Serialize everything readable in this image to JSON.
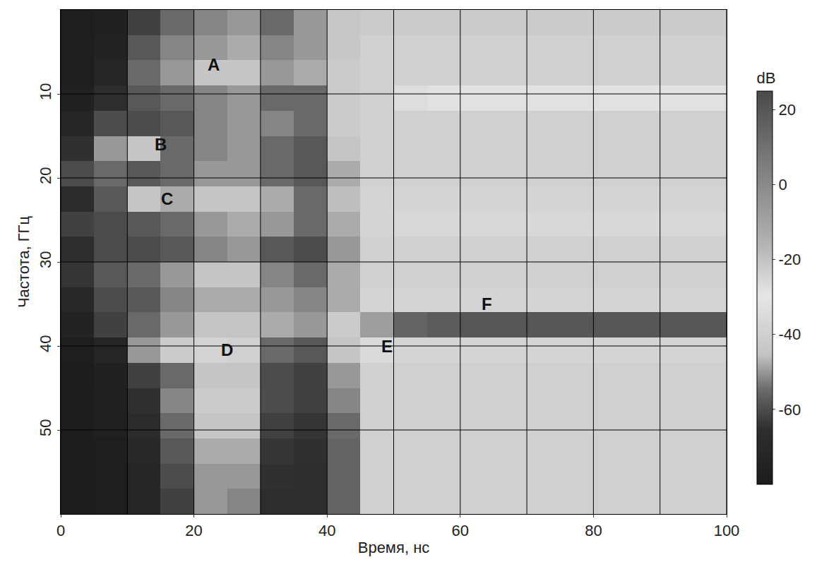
{
  "chart_data": {
    "type": "heatmap",
    "x_label": "Время, нс",
    "y_label": "Частота, ГГц",
    "xlim": [
      0,
      100
    ],
    "ylim": [
      60,
      0
    ],
    "xticks": [
      0,
      20,
      40,
      60,
      80,
      100
    ],
    "yticks": [
      10,
      20,
      30,
      40,
      50
    ],
    "grid": true,
    "x": [
      2.5,
      7.5,
      12.5,
      17.5,
      22.5,
      27.5,
      32.5,
      37.5,
      42.5,
      47.5,
      52.5,
      57.5,
      62.5,
      67.5,
      72.5,
      77.5,
      82.5,
      87.5,
      92.5,
      97.5
    ],
    "y": [
      1.5,
      4.5,
      7.5,
      10.5,
      13.5,
      16.5,
      19.5,
      22.5,
      25.5,
      28.5,
      31.5,
      34.5,
      37.5,
      40.5,
      43.5,
      46.5,
      49.5,
      52.5,
      55.5,
      58.5
    ],
    "cells": [
      [
        -78,
        -76,
        -62,
        -55,
        -52,
        -50,
        -55,
        -50,
        -44,
        -42,
        -42,
        -42,
        -42,
        -42,
        -42,
        -42,
        -42,
        -42,
        -42,
        -42
      ],
      [
        -78,
        -75,
        -58,
        -52,
        -50,
        -48,
        -52,
        -50,
        -44,
        -40,
        -40,
        -40,
        -40,
        -40,
        -40,
        -40,
        -40,
        -40,
        -40,
        -40
      ],
      [
        -78,
        -72,
        -55,
        -50,
        -45,
        -45,
        -50,
        -48,
        -42,
        -40,
        -40,
        -40,
        -40,
        -40,
        -40,
        -40,
        -40,
        -40,
        -40,
        -40
      ],
      [
        -76,
        -66,
        -58,
        -55,
        -52,
        -50,
        -55,
        -55,
        -42,
        -40,
        -34,
        -32,
        -32,
        -32,
        -32,
        -32,
        -32,
        -32,
        -32,
        -32
      ],
      [
        -72,
        -60,
        -60,
        -58,
        -52,
        -50,
        -52,
        -55,
        -42,
        -40,
        -40,
        -40,
        -40,
        -40,
        -40,
        -40,
        -40,
        -40,
        -40,
        -40
      ],
      [
        -65,
        -50,
        -45,
        -55,
        -52,
        -50,
        -55,
        -58,
        -45,
        -40,
        -40,
        -40,
        -40,
        -40,
        -40,
        -40,
        -40,
        -40,
        -40,
        -40
      ],
      [
        -60,
        -55,
        -58,
        -55,
        -50,
        -50,
        -55,
        -58,
        -48,
        -40,
        -40,
        -40,
        -40,
        -40,
        -40,
        -40,
        -40,
        -40,
        -40,
        -40
      ],
      [
        -68,
        -58,
        -45,
        -48,
        -45,
        -45,
        -48,
        -55,
        -46,
        -38,
        -38,
        -38,
        -38,
        -38,
        -38,
        -38,
        -38,
        -38,
        -38,
        -38
      ],
      [
        -62,
        -60,
        -58,
        -55,
        -50,
        -48,
        -50,
        -55,
        -48,
        -38,
        -36,
        -36,
        -36,
        -36,
        -36,
        -36,
        -36,
        -36,
        -36,
        -36
      ],
      [
        -66,
        -60,
        -60,
        -58,
        -52,
        -50,
        -58,
        -60,
        -50,
        -40,
        -40,
        -40,
        -40,
        -40,
        -40,
        -40,
        -40,
        -40,
        -40,
        -40
      ],
      [
        -64,
        -58,
        -55,
        -50,
        -45,
        -45,
        -52,
        -55,
        -48,
        -40,
        -40,
        -40,
        -40,
        -40,
        -40,
        -40,
        -40,
        -40,
        -40,
        -40
      ],
      [
        -70,
        -60,
        -58,
        -52,
        -48,
        -48,
        -50,
        -52,
        -48,
        -38,
        -38,
        -38,
        -38,
        -38,
        -38,
        -38,
        -38,
        -38,
        -38,
        -38
      ],
      [
        -74,
        -62,
        -55,
        -50,
        -45,
        -45,
        -48,
        -50,
        -42,
        -8,
        15,
        18,
        20,
        20,
        20,
        20,
        20,
        20,
        20,
        20
      ],
      [
        -78,
        -72,
        -50,
        -42,
        -38,
        -40,
        -55,
        -58,
        -45,
        -35,
        -38,
        -38,
        -38,
        -38,
        -38,
        -38,
        -38,
        -38,
        -38,
        -38
      ],
      [
        -79,
        -76,
        -62,
        -55,
        -45,
        -45,
        -60,
        -62,
        -50,
        -40,
        -40,
        -40,
        -40,
        -40,
        -40,
        -40,
        -40,
        -40,
        -40,
        -40
      ],
      [
        -79,
        -77,
        -65,
        -52,
        -42,
        -42,
        -60,
        -62,
        -52,
        -40,
        -40,
        -40,
        -40,
        -40,
        -40,
        -40,
        -40,
        -40,
        -40,
        -40
      ],
      [
        -79,
        -77,
        -68,
        -55,
        -45,
        -45,
        -62,
        -64,
        -55,
        -40,
        -40,
        -40,
        -40,
        -40,
        -40,
        -40,
        -40,
        -40,
        -40,
        -40
      ],
      [
        -79,
        -78,
        -70,
        -58,
        -48,
        -48,
        -64,
        -65,
        -56,
        -40,
        -40,
        -40,
        -40,
        -40,
        -40,
        -40,
        -40,
        -40,
        -40,
        -40
      ],
      [
        -79,
        -78,
        -72,
        -60,
        -50,
        -50,
        -65,
        -66,
        -56,
        -40,
        -40,
        -40,
        -40,
        -40,
        -40,
        -40,
        -40,
        -40,
        -40,
        -40
      ],
      [
        -79,
        -78,
        -72,
        -62,
        -50,
        -52,
        -66,
        -66,
        -56,
        -40,
        -40,
        -40,
        -40,
        -40,
        -40,
        -40,
        -40,
        -40,
        -40,
        -40
      ]
    ],
    "colorbar": {
      "title": "dB",
      "range": [
        -80,
        25
      ],
      "ticks": [
        20,
        0,
        -20,
        -40,
        -60
      ]
    },
    "annotations": [
      {
        "text": "A",
        "x": 23,
        "y": 6.5
      },
      {
        "text": "B",
        "x": 15,
        "y": 16
      },
      {
        "text": "C",
        "x": 16,
        "y": 22.5
      },
      {
        "text": "D",
        "x": 25,
        "y": 40.5
      },
      {
        "text": "E",
        "x": 49,
        "y": 40
      },
      {
        "text": "F",
        "x": 64,
        "y": 35
      }
    ]
  }
}
